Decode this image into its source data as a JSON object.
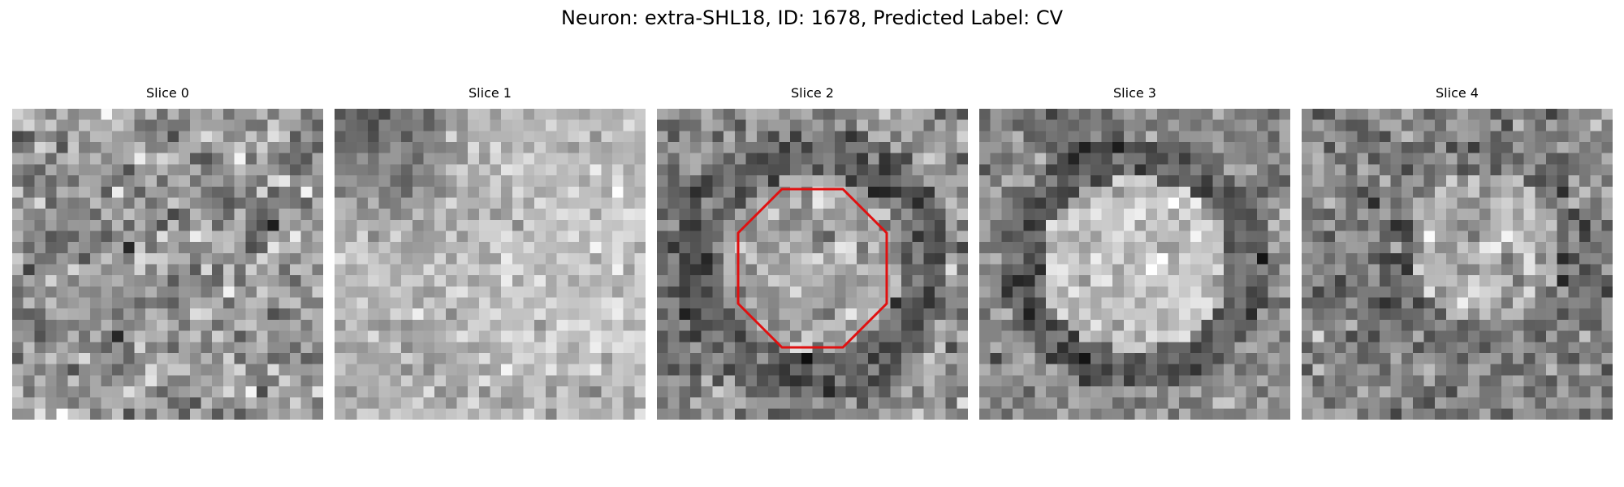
{
  "figure": {
    "title": "Neuron: extra-SHL18, ID: 1678, Predicted Label: CV"
  },
  "panels": [
    {
      "title": "Slice 0",
      "pattern": "noise"
    },
    {
      "title": "Slice 1",
      "pattern": "gradient-dark-top-left"
    },
    {
      "title": "Slice 2",
      "pattern": "ring-faint"
    },
    {
      "title": "Slice 3",
      "pattern": "bright-disk-dark-ring"
    },
    {
      "title": "Slice 4",
      "pattern": "faint-disk"
    }
  ],
  "colormap": "gray",
  "roi": {
    "shape": "octagon",
    "color": "#e01010",
    "panel_index": 2
  }
}
